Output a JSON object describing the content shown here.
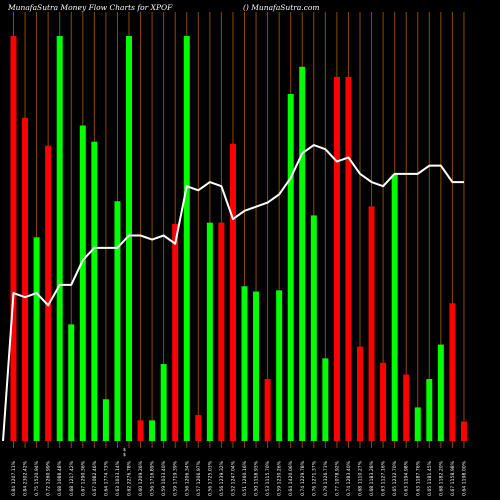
{
  "header": {
    "left": "MunafaSutra  Money Flow  Charts for XPOF",
    "right": "() MunafaSutra.com"
  },
  "chart_data": {
    "type": "bar",
    "bar_ylim": [
      0,
      100
    ],
    "line_ylim": [
      0,
      100
    ],
    "grid": "vertical lines",
    "colors": {
      "up": "#00ff00",
      "down": "#ff0000",
      "line": "#ffffff",
      "grid": "#8b4a00",
      "background": "#000000"
    },
    "bars": [
      {
        "v": 100,
        "c": "down",
        "label": "0.84 1207.11%"
      },
      {
        "v": 79.8,
        "c": "down",
        "label": "0.84 2302.42%"
      },
      {
        "v": 50.3,
        "c": "up",
        "label": "0.75 1520.94%"
      },
      {
        "v": 72.9,
        "c": "down",
        "label": "0.72 1260.99%"
      },
      {
        "v": 100,
        "c": "up",
        "label": "0.68 1088.48%"
      },
      {
        "v": 28.8,
        "c": "up",
        "label": "0.68 1217.42%"
      },
      {
        "v": 77.9,
        "c": "up",
        "label": "0.67 1290.36%"
      },
      {
        "v": 73.9,
        "c": "up",
        "label": "0.67 1082.46%"
      },
      {
        "v": 10.3,
        "c": "up",
        "label": "0.64 1774.73%"
      },
      {
        "v": 59.2,
        "c": "up",
        "label": "0.63 1033.14%"
      },
      {
        "v": 100,
        "c": "up",
        "label": "0.62 2276.78%"
      },
      {
        "v": 5.1,
        "c": "down",
        "label": "0.60 1209.26%"
      },
      {
        "v": 5.1,
        "c": "up",
        "label": "0.56 1716.89%"
      },
      {
        "v": 19.0,
        "c": "up",
        "label": "0.59 1033.40%"
      },
      {
        "v": 53.6,
        "c": "down",
        "label": "0.59 1719.39%"
      },
      {
        "v": 100,
        "c": "up",
        "label": "0.56 1206.34%"
      },
      {
        "v": 6.4,
        "c": "down",
        "label": "0.57 1206.97%"
      },
      {
        "v": 53.9,
        "c": "up",
        "label": "0.56 1725.03%"
      },
      {
        "v": 53.9,
        "c": "down",
        "label": "0.56 1239.32%"
      },
      {
        "v": 73.4,
        "c": "down",
        "label": "0.52 1247.04%"
      },
      {
        "v": 38.2,
        "c": "up",
        "label": "0.51 1260.16%"
      },
      {
        "v": 36.9,
        "c": "up",
        "label": "0.50 1158.93%"
      },
      {
        "v": 15.3,
        "c": "down",
        "label": "0.53 1115.70%"
      },
      {
        "v": 37.2,
        "c": "up",
        "label": "0.59 1230.26%"
      },
      {
        "v": 85.7,
        "c": "up",
        "label": "0.64 1420.06%"
      },
      {
        "v": 92.4,
        "c": "up",
        "label": "0.74 1229.78%"
      },
      {
        "v": 55.7,
        "c": "up",
        "label": "0.76 1271.37%"
      },
      {
        "v": 20.4,
        "c": "up",
        "label": "0.79 1326.73%"
      },
      {
        "v": 89.9,
        "c": "down",
        "label": "0.77 1078.92%"
      },
      {
        "v": 89.9,
        "c": "down",
        "label": "0.74 1283.40%"
      },
      {
        "v": 23.3,
        "c": "down",
        "label": "0.68 1110.27%"
      },
      {
        "v": 57.9,
        "c": "down",
        "label": "0.68 1183.28%"
      },
      {
        "v": 19.3,
        "c": "down",
        "label": "0.63 1127.16%"
      },
      {
        "v": 65.8,
        "c": "up",
        "label": "0.65 1232.70%"
      },
      {
        "v": 16.4,
        "c": "down",
        "label": "0.63 1194.98%"
      },
      {
        "v": 8.3,
        "c": "up",
        "label": "0.63 1187.76%"
      },
      {
        "v": 15.3,
        "c": "up",
        "label": "0.65 1181.45%"
      },
      {
        "v": 23.8,
        "c": "up",
        "label": "0.68 1182.20%"
      },
      {
        "v": 34.0,
        "c": "down",
        "label": "0.67 1158.98%"
      },
      {
        "v": 4.8,
        "c": "down",
        "label": "0.64 1198.00%"
      }
    ],
    "line": [
      36,
      35,
      36,
      33,
      38,
      38,
      44,
      47,
      47,
      47,
      50,
      50,
      49,
      50,
      48,
      62,
      61,
      63,
      62,
      54,
      56,
      57,
      58,
      60,
      64,
      70,
      72,
      71,
      68,
      69,
      65,
      63,
      62,
      65,
      65,
      65,
      67,
      67,
      63,
      63
    ],
    "annotations": [
      "$",
      "$"
    ]
  }
}
